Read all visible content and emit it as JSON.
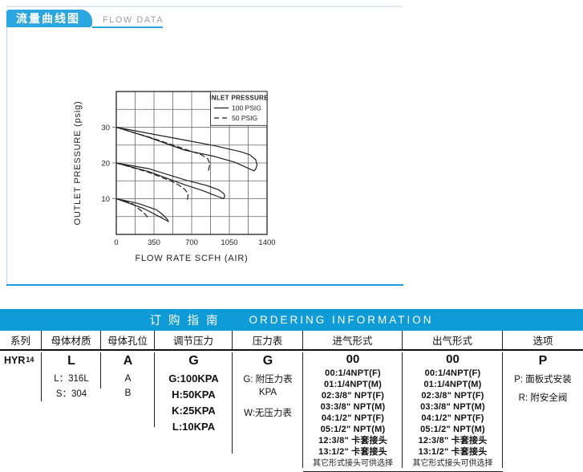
{
  "header": {
    "tab_title": "流量曲线图",
    "flow_data_label": "FLOW DATA",
    "tab_color": "#2ba6e0",
    "bar_color": "#0f9bd8"
  },
  "chart_data": {
    "type": "line",
    "title": "",
    "xlabel": "FLOW RATE SCFH (AIR)",
    "ylabel": "OUTLET PRESSURE (psig)",
    "xlim": [
      0,
      1400
    ],
    "ylim": [
      0,
      40
    ],
    "x_grid_step": 175,
    "y_grid_step": 5,
    "grid": true,
    "x_ticks": [
      "0",
      "350",
      "700",
      "1050",
      "1400"
    ],
    "x_tick_values": [
      0,
      350,
      700,
      1050,
      1400
    ],
    "y_ticks": [
      "10",
      "20",
      "30"
    ],
    "y_tick_values": [
      10,
      20,
      30
    ],
    "legend": {
      "title": "INLET PRESSURE",
      "position": "top-right",
      "entries": [
        {
          "label": "100 PSIG",
          "style": "solid"
        },
        {
          "label": "50 PSIG",
          "style": "dashed"
        }
      ]
    },
    "series": [
      {
        "name": "set 30 psig, 100 PSIG inlet, droop branch",
        "style": "solid",
        "points": [
          [
            0,
            30
          ],
          [
            300,
            28.3
          ],
          [
            600,
            26.6
          ],
          [
            900,
            24.9
          ],
          [
            1150,
            23.2
          ],
          [
            1240,
            22.3
          ],
          [
            1295,
            20.9
          ],
          [
            1308,
            19.4
          ],
          [
            1293,
            18.2
          ],
          [
            1278,
            17.8
          ]
        ]
      },
      {
        "name": "set 30 psig, 100 PSIG inlet, return branch",
        "style": "solid",
        "points": [
          [
            0,
            30
          ],
          [
            300,
            27.2
          ],
          [
            634,
            23.6
          ],
          [
            900,
            21.9
          ],
          [
            1100,
            20.2
          ],
          [
            1278,
            17.8
          ]
        ]
      },
      {
        "name": "set 30 psig, 50 PSIG inlet",
        "style": "dashed",
        "points": [
          [
            0,
            30
          ],
          [
            300,
            27.3
          ],
          [
            634,
            23.9
          ],
          [
            790,
            22.3
          ],
          [
            850,
            21.2
          ],
          [
            868,
            19.8
          ],
          [
            860,
            18.3
          ],
          [
            852,
            17.6
          ]
        ]
      },
      {
        "name": "set 20 psig, 100 PSIG inlet, droop branch",
        "style": "solid",
        "points": [
          [
            0,
            20
          ],
          [
            300,
            18.4
          ],
          [
            634,
            15.3
          ],
          [
            850,
            13.6
          ],
          [
            950,
            12.5
          ],
          [
            1000,
            11.4
          ],
          [
            1008,
            10.6
          ],
          [
            995,
            10.0
          ]
        ]
      },
      {
        "name": "set 20 psig, 100 PSIG inlet, return branch",
        "style": "solid",
        "points": [
          [
            0,
            20
          ],
          [
            300,
            17.6
          ],
          [
            634,
            13.9
          ],
          [
            800,
            12.3
          ],
          [
            995,
            10.0
          ]
        ]
      },
      {
        "name": "set 20 psig, 50 PSIG inlet",
        "style": "dashed",
        "points": [
          [
            0,
            20
          ],
          [
            300,
            17.4
          ],
          [
            550,
            14.4
          ],
          [
            634,
            12.7
          ],
          [
            668,
            11.3
          ],
          [
            662,
            10.0
          ],
          [
            658,
            9.6
          ]
        ]
      },
      {
        "name": "set 10 psig, 100 PSIG inlet, droop branch",
        "style": "solid",
        "points": [
          [
            0,
            10
          ],
          [
            200,
            8.7
          ],
          [
            373,
            6.9
          ],
          [
            430,
            5.6
          ],
          [
            472,
            4.3
          ],
          [
            485,
            3.6
          ]
        ]
      },
      {
        "name": "set 10 psig, 100 PSIG inlet, return branch",
        "style": "solid",
        "points": [
          [
            0,
            10
          ],
          [
            250,
            7.3
          ],
          [
            400,
            5.0
          ],
          [
            485,
            3.6
          ]
        ]
      },
      {
        "name": "set 10 psig, 50 PSIG inlet",
        "style": "dashed",
        "points": [
          [
            0,
            10
          ],
          [
            150,
            8.6
          ],
          [
            260,
            5.9
          ],
          [
            298,
            4.6
          ]
        ]
      }
    ]
  },
  "ordering": {
    "title_cn": "订购指南",
    "title_en": "ORDERING INFORMATION",
    "columns": [
      {
        "header": "系列",
        "code": "HYR",
        "code_sup": "14",
        "lines": []
      },
      {
        "header": "母体材质",
        "code": "L",
        "lines": [
          "L：316L",
          "S：304"
        ]
      },
      {
        "header": "母体孔位",
        "code": "A",
        "lines": [
          "A",
          "B"
        ]
      },
      {
        "header": "调节压力",
        "code": "G",
        "lines": [
          "G:100KPA",
          "H:50KPA",
          "K:25KPA",
          "L:10KPA"
        ]
      },
      {
        "header": "压力表",
        "code": "G",
        "lines": [
          "G: 附压力表",
          "KPA",
          "",
          "W:无压力表"
        ]
      },
      {
        "header": "进气形式",
        "code": "00",
        "lines": [
          "00:1/4NPT(F)",
          "01:1/4NPT(M)",
          "02:3/8\" NPT(F)",
          "03:3/8\" NPT(M)",
          "04:1/2\" NPT(F)",
          "05:1/2\" NPT(M)",
          "12:3/8\" 卡套接头",
          "13:1/2\" 卡套接头"
        ],
        "note": "其它形式接头可供选择"
      },
      {
        "header": "出气形式",
        "code": "00",
        "lines": [
          "00:1/4NPT(F)",
          "01:1/4NPT(M)",
          "02:3/8\" NPT(F)",
          "03:3/8\" NPT(M)",
          "04:1/2\" NPT(F)",
          "05:1/2\" NPT(M)",
          "12:3/8\" 卡套接头",
          "13:1/2\" 卡套接头"
        ],
        "note": "其它形式接头可供选择"
      },
      {
        "header": "选项",
        "code": "P",
        "lines": [
          "P: 面板式安装",
          "R: 附安全阀"
        ]
      }
    ]
  }
}
